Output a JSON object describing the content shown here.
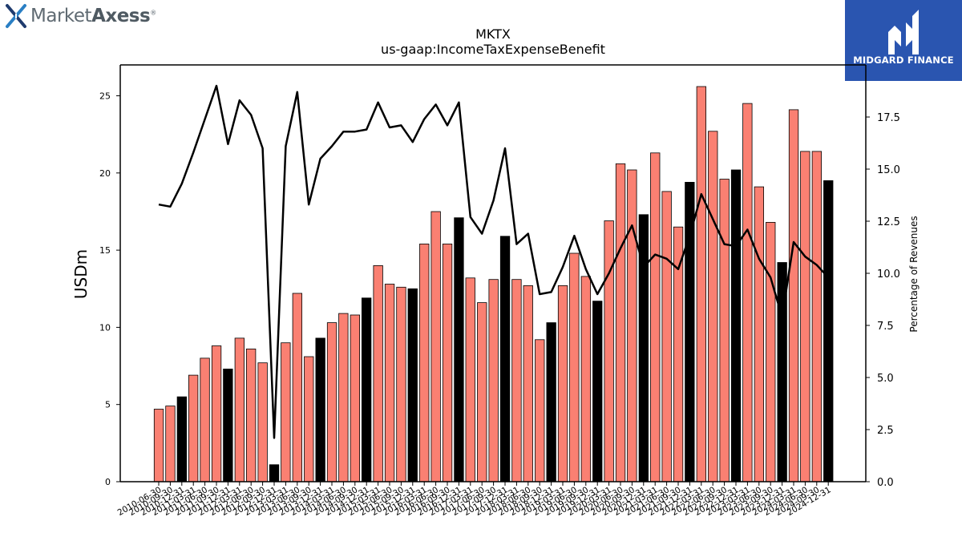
{
  "header": {
    "left_logo_text": "MarketAxess",
    "left_logo_part1": "Market",
    "left_logo_part2": "Axess",
    "left_logo_reg": "®",
    "right_logo_text": "MIDGARD FINANCE"
  },
  "chart_data": {
    "type": "bar",
    "title": "MKTX",
    "subtitle": "us-gaap:IncomeTaxExpenseBenefit",
    "ylabel": "USDm",
    "y2label": "Percentage of Revenues",
    "ylim": [
      0,
      27
    ],
    "y2lim": [
      0,
      20
    ],
    "yticks": [
      0,
      5,
      10,
      15,
      20,
      25
    ],
    "y2ticks": [
      "0.0",
      "2.5",
      "5.0",
      "7.5",
      "10.0",
      "12.5",
      "15.0",
      "17.5"
    ],
    "colors": {
      "bar": "#fa8072",
      "bar_q4": "#000000",
      "line": "#000000"
    },
    "categories": [
      "2010-06-30",
      "2010-09-30",
      "2010-12-31",
      "2011-03-31",
      "2011-06-30",
      "2011-09-30",
      "2011-12-31",
      "2012-03-31",
      "2012-06-30",
      "2012-09-30",
      "2012-12-31",
      "2013-03-31",
      "2013-06-30",
      "2013-09-30",
      "2013-12-31",
      "2014-03-31",
      "2014-06-30",
      "2014-09-30",
      "2014-12-31",
      "2015-03-31",
      "2015-06-30",
      "2015-09-30",
      "2015-12-31",
      "2016-03-31",
      "2016-06-30",
      "2016-09-30",
      "2016-12-31",
      "2017-03-31",
      "2017-06-30",
      "2017-09-30",
      "2017-12-31",
      "2018-03-31",
      "2018-06-30",
      "2018-09-30",
      "2018-12-31",
      "2019-03-31",
      "2019-06-30",
      "2019-09-30",
      "2019-12-31",
      "2020-03-31",
      "2020-06-30",
      "2020-09-30",
      "2020-12-31",
      "2021-03-31",
      "2021-06-30",
      "2021-09-30",
      "2021-12-31",
      "2022-03-31",
      "2022-06-30",
      "2022-09-30",
      "2022-12-31",
      "2023-03-31",
      "2023-06-30",
      "2023-09-30",
      "2023-12-31",
      "2024-03-31",
      "2024-06-30",
      "2024-09-30",
      "2024-12-31"
    ],
    "series": [
      {
        "values": [
          4.7,
          4.9,
          5.5,
          6.9,
          8.0,
          8.8,
          7.3,
          9.3,
          8.6,
          7.7,
          1.1,
          9.0,
          12.2,
          8.1,
          9.3,
          10.3,
          10.9,
          10.8,
          11.9,
          14.0,
          12.8,
          12.6,
          12.5,
          15.4,
          17.5,
          15.4,
          17.1,
          13.2,
          11.6,
          13.1,
          15.9,
          13.1,
          12.7,
          9.2,
          10.3,
          12.7,
          14.8,
          13.3,
          11.7,
          16.9,
          20.6,
          20.2,
          17.3,
          21.3,
          18.8,
          16.5,
          19.4,
          25.6,
          22.7,
          19.6,
          20.2,
          24.5,
          19.1,
          16.8,
          14.2,
          24.1,
          21.4,
          21.4,
          19.5
        ]
      },
      {
        "values": [
          13.3,
          13.2,
          14.3,
          15.8,
          17.4,
          19.0,
          16.2,
          18.3,
          17.6,
          16.0,
          2.1,
          16.1,
          18.7,
          13.3,
          15.5,
          16.1,
          16.8,
          16.8,
          16.9,
          18.2,
          17.0,
          17.1,
          16.3,
          17.4,
          18.1,
          17.1,
          18.2,
          12.7,
          11.9,
          13.5,
          16.0,
          11.4,
          11.9,
          9.0,
          9.1,
          10.3,
          11.8,
          10.2,
          9.0,
          10.0,
          11.2,
          12.3,
          10.3,
          10.9,
          10.7,
          10.2,
          11.8,
          13.8,
          12.6,
          11.4,
          11.3,
          12.1,
          10.7,
          9.8,
          7.9,
          11.5,
          10.8,
          10.4,
          9.8
        ]
      }
    ],
    "highlight_quarter": "12-31"
  }
}
